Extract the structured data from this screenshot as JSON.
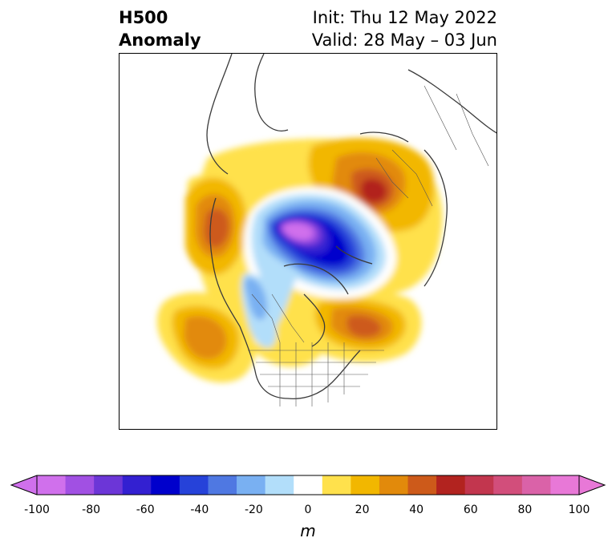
{
  "title": {
    "left_line1": "H500",
    "left_line2": "Anomaly",
    "right_line1": "Init: Thu 12 May 2022",
    "right_line2": "Valid: 28 May – 03 Jun"
  },
  "map": {
    "projection": "north-polar-stereographic",
    "region": "Northern Hemisphere (North America focus)",
    "features": [
      "coastlines",
      "country borders",
      "US state borders",
      "Canadian provinces"
    ],
    "anomaly_centers": [
      {
        "label": "negative",
        "location": "Arctic / north of Greenland",
        "approx_value_m": -100
      },
      {
        "label": "negative",
        "location": "Baffin Bay / Canadian Arctic",
        "approx_value_m": -60
      },
      {
        "label": "negative",
        "location": "Western Canada / Pacific NW trough",
        "approx_value_m": -20
      },
      {
        "label": "positive",
        "location": "Scandinavia / Northwest Russia",
        "approx_value_m": 60
      },
      {
        "label": "positive",
        "location": "Siberia / Bering region",
        "approx_value_m": 50
      },
      {
        "label": "positive",
        "location": "Northeast Pacific off California",
        "approx_value_m": 40
      },
      {
        "label": "positive",
        "location": "Northwest Atlantic / Eastern Canada",
        "approx_value_m": 50
      }
    ]
  },
  "colorbar": {
    "ticks": [
      "-100",
      "-80",
      "-60",
      "-40",
      "-20",
      "0",
      "20",
      "40",
      "60",
      "80",
      "100"
    ],
    "units": "m",
    "extend": "both",
    "colors": [
      "#d070ec",
      "#a150e3",
      "#6c36d7",
      "#3320d1",
      "#0000cc",
      "#2642d9",
      "#4f78e2",
      "#79b0f2",
      "#b2defa",
      "#ffffff",
      "#ffe14c",
      "#f2b700",
      "#e28a0b",
      "#cd5a1a",
      "#b2231f",
      "#c2364e",
      "#d24e7b",
      "#da62a8",
      "#e878d7"
    ],
    "extend_low_color": "#d070ec",
    "extend_high_color": "#e878d7"
  }
}
